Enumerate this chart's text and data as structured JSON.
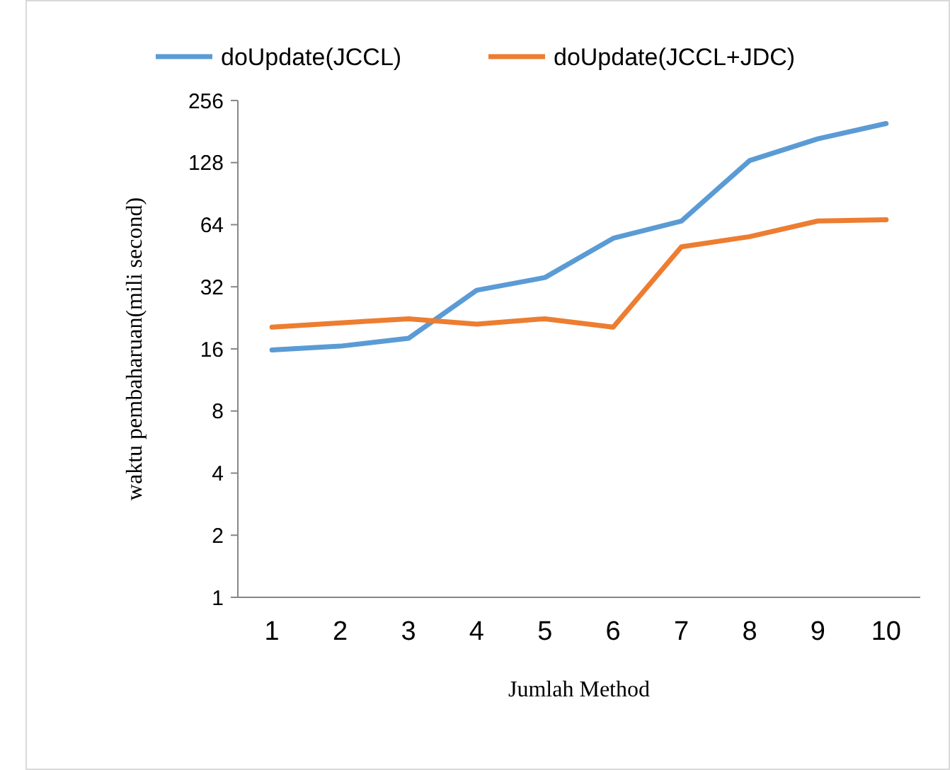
{
  "chart_data": {
    "type": "line",
    "xlabel": "Jumlah Method",
    "ylabel": "waktu pembaharuan(mili second)",
    "categories": [
      "1",
      "2",
      "3",
      "4",
      "5",
      "6",
      "7",
      "8",
      "9",
      "10"
    ],
    "log": "y",
    "ylim": [
      1,
      256
    ],
    "yticks": [
      1,
      2,
      4,
      8,
      16,
      32,
      64,
      128,
      256
    ],
    "grid": false,
    "legend": "top",
    "marker": "none",
    "line_style": "solid",
    "series": [
      {
        "name": "doUpdate(JCCL)",
        "color": "#5b9bd5",
        "values": [
          15.8,
          16.5,
          18,
          30.8,
          35.5,
          55,
          66.7,
          131,
          167,
          198
        ]
      },
      {
        "name": "doUpdate(JCCL+JDC)",
        "color": "#ed7d31",
        "values": [
          20.4,
          21.4,
          22.4,
          21.1,
          22.4,
          20.4,
          50,
          56,
          66.7,
          67.7
        ]
      }
    ]
  }
}
